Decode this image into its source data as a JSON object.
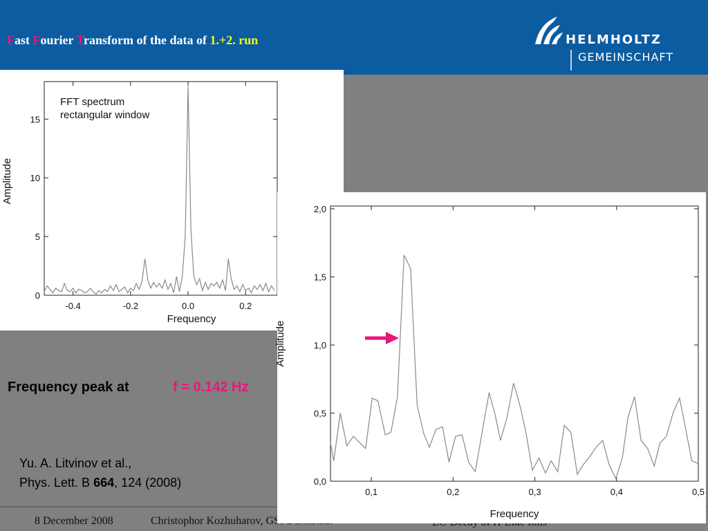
{
  "header": {
    "title_parts": [
      "F",
      "ast ",
      "F",
      "ourier ",
      "T",
      "ransform of the data of ",
      "1.+2. run"
    ],
    "logo": [
      "HELMHOLTZ",
      "GEMEINSCHAFT"
    ]
  },
  "peak": {
    "label": "Frequency peak at",
    "value": "f = 0.142 Hz"
  },
  "reference": {
    "line1": "Yu. A. Litvinov et al.,",
    "journal": "Phys. Lett. B ",
    "volume": "664",
    "rest": ", 124 (2008)"
  },
  "footer": {
    "date": "8 December 2008",
    "author": "Christophor Kozhuharov, GSI Darmstadt",
    "topic": "EC-Decay of H-Like Ions"
  },
  "chart_data": [
    {
      "type": "line",
      "annotation": [
        "FFT spectrum",
        "rectangular window"
      ],
      "xlabel": "Frequency",
      "ylabel": "Amplitude",
      "color": "#888888",
      "xlim": [
        -0.5,
        0.31
      ],
      "ylim": [
        0,
        18.2
      ],
      "xticks": [
        -0.4,
        -0.2,
        {
          "value": 0,
          "label": "0.0"
        },
        0.2
      ],
      "yticks": [
        0,
        5,
        10,
        15
      ],
      "x": [
        -0.5,
        -0.49,
        -0.48,
        -0.47,
        -0.46,
        -0.45,
        -0.44,
        -0.43,
        -0.42,
        -0.41,
        -0.4,
        -0.39,
        -0.38,
        -0.37,
        -0.36,
        -0.35,
        -0.34,
        -0.33,
        -0.32,
        -0.31,
        -0.3,
        -0.29,
        -0.28,
        -0.27,
        -0.26,
        -0.25,
        -0.24,
        -0.23,
        -0.22,
        -0.21,
        -0.2,
        -0.19,
        -0.18,
        -0.17,
        -0.16,
        -0.15,
        -0.14,
        -0.13,
        -0.12,
        -0.11,
        -0.1,
        -0.09,
        -0.08,
        -0.07,
        -0.06,
        -0.05,
        -0.04,
        -0.03,
        -0.02,
        -0.01,
        0,
        0.01,
        0.02,
        0.03,
        0.04,
        0.05,
        0.06,
        0.07,
        0.08,
        0.09,
        0.1,
        0.11,
        0.12,
        0.13,
        0.14,
        0.15,
        0.16,
        0.17,
        0.18,
        0.19,
        0.2,
        0.21,
        0.22,
        0.23,
        0.24,
        0.25,
        0.26,
        0.27,
        0.28,
        0.29,
        0.3
      ],
      "values": [
        0.3,
        0.8,
        0.5,
        0.2,
        0.6,
        0.4,
        0.3,
        1.0,
        0.4,
        0.3,
        0.6,
        0.2,
        0.5,
        0.4,
        0.2,
        0.3,
        0.6,
        0.3,
        0.1,
        0.4,
        0.2,
        0.5,
        0.3,
        0.8,
        0.4,
        0.9,
        0.3,
        0.5,
        0.7,
        0.2,
        0.6,
        0.4,
        1.0,
        0.5,
        1.2,
        3.1,
        1.3,
        0.6,
        1.1,
        0.7,
        1.0,
        0.6,
        1.3,
        0.5,
        1.0,
        0.2,
        1.6,
        0.3,
        1.6,
        5.0,
        17.8,
        5.5,
        1.6,
        0.9,
        1.4,
        0.4,
        1.1,
        0.5,
        1.0,
        0.8,
        1.1,
        0.6,
        1.3,
        0.4,
        3.1,
        1.4,
        0.5,
        0.8,
        0.3,
        0.9,
        0.4,
        0.6,
        0.2,
        0.8,
        0.5,
        0.9,
        0.4,
        1.0,
        0.3,
        0.8,
        0.4
      ]
    },
    {
      "type": "line",
      "xlabel": "Frequency",
      "ylabel": "Amplitude",
      "color": "#888888",
      "xlim": [
        0.05,
        0.5
      ],
      "ylim": [
        0,
        2.02
      ],
      "xticks": [
        {
          "value": 0.1,
          "label": "0,1"
        },
        {
          "value": 0.2,
          "label": "0,2"
        },
        {
          "value": 0.3,
          "label": "0,3"
        },
        {
          "value": 0.4,
          "label": "0,4"
        },
        {
          "value": 0.5,
          "label": "0,5"
        }
      ],
      "yticks": [
        {
          "value": 0,
          "label": "0,0"
        },
        {
          "value": 0.5,
          "label": "0,5"
        },
        {
          "value": 1,
          "label": "1,0"
        },
        {
          "value": 1.5,
          "label": "1,5"
        },
        {
          "value": 2,
          "label": "2,0"
        }
      ],
      "x": [
        0.05,
        0.054,
        0.062,
        0.07,
        0.078,
        0.093,
        0.101,
        0.108,
        0.117,
        0.124,
        0.132,
        0.14,
        0.148,
        0.156,
        0.164,
        0.171,
        0.179,
        0.187,
        0.195,
        0.203,
        0.211,
        0.219,
        0.227,
        0.244,
        0.251,
        0.258,
        0.266,
        0.274,
        0.282,
        0.289,
        0.297,
        0.305,
        0.313,
        0.32,
        0.328,
        0.336,
        0.344,
        0.352,
        0.359,
        0.367,
        0.375,
        0.383,
        0.391,
        0.399,
        0.407,
        0.414,
        0.422,
        0.43,
        0.438,
        0.446,
        0.453,
        0.461,
        0.469,
        0.477,
        0.484,
        0.492,
        0.5
      ],
      "values": [
        0.28,
        0.15,
        0.5,
        0.26,
        0.33,
        0.24,
        0.61,
        0.59,
        0.34,
        0.36,
        0.62,
        1.66,
        1.56,
        0.56,
        0.35,
        0.25,
        0.38,
        0.4,
        0.14,
        0.33,
        0.34,
        0.14,
        0.07,
        0.65,
        0.5,
        0.3,
        0.47,
        0.72,
        0.55,
        0.36,
        0.08,
        0.17,
        0.06,
        0.15,
        0.07,
        0.41,
        0.36,
        0.05,
        0.12,
        0.18,
        0.25,
        0.3,
        0.12,
        0.02,
        0.17,
        0.47,
        0.62,
        0.3,
        0.24,
        0.11,
        0.28,
        0.33,
        0.5,
        0.61,
        0.4,
        0.15,
        0.13
      ]
    }
  ]
}
